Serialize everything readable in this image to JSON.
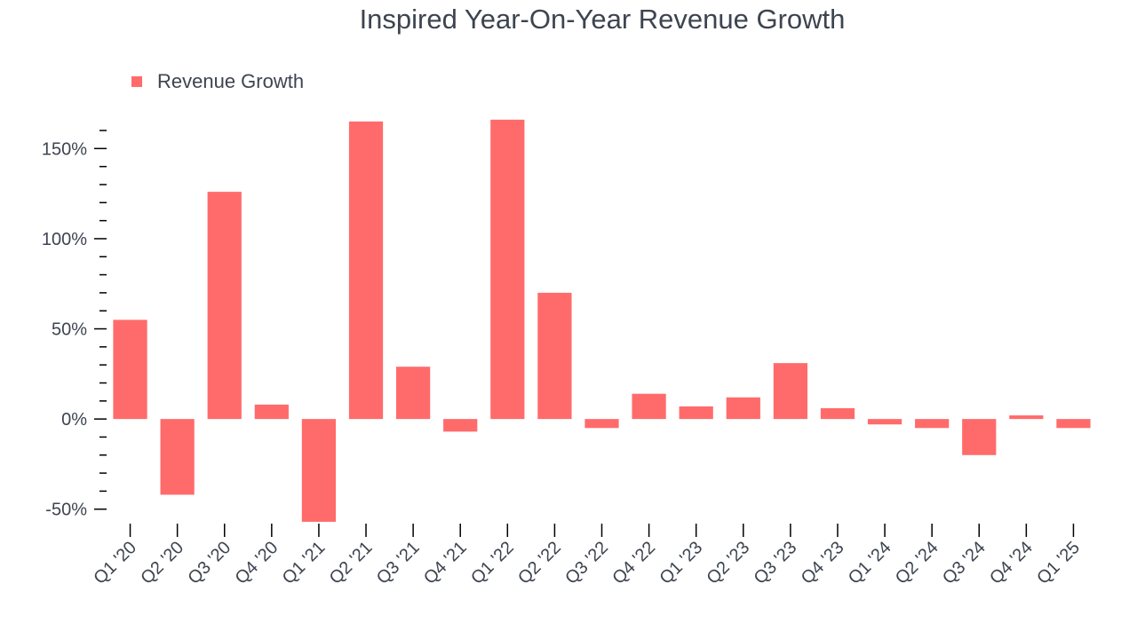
{
  "colors": {
    "bar": "#ff6b6b",
    "text": "#3d4450",
    "axis": "#000000"
  },
  "legend": {
    "label": "Revenue Growth"
  },
  "chart_data": {
    "type": "bar",
    "title": "Inspired Year-On-Year Revenue Growth",
    "xlabel": "",
    "ylabel": "",
    "ylim": [
      -59,
      161
    ],
    "yticks": [
      -50,
      0,
      50,
      100,
      150
    ],
    "ytick_labels": [
      "-50%",
      "0%",
      "50%",
      "100%",
      "150%"
    ],
    "ylabel_positions_percent_suffix": true,
    "grid": false,
    "legend_position": "top-left",
    "series": [
      {
        "name": "Revenue Growth",
        "values": [
          55,
          -42,
          126,
          8,
          -57,
          165,
          29,
          -7,
          166,
          70,
          -5,
          14,
          7,
          12,
          31,
          6,
          -3,
          -5,
          -20,
          2,
          -5
        ]
      }
    ],
    "categories": [
      "Q1 '20",
      "Q2 '20",
      "Q3 '20",
      "Q4 '20",
      "Q1 '21",
      "Q2 '21",
      "Q3 '21",
      "Q4 '21",
      "Q1 '22",
      "Q2 '22",
      "Q3 '22",
      "Q4 '22",
      "Q1 '23",
      "Q2 '23",
      "Q3 '23",
      "Q4 '23",
      "Q1 '24",
      "Q2 '24",
      "Q3 '24",
      "Q4 '24",
      "Q1 '25"
    ]
  }
}
